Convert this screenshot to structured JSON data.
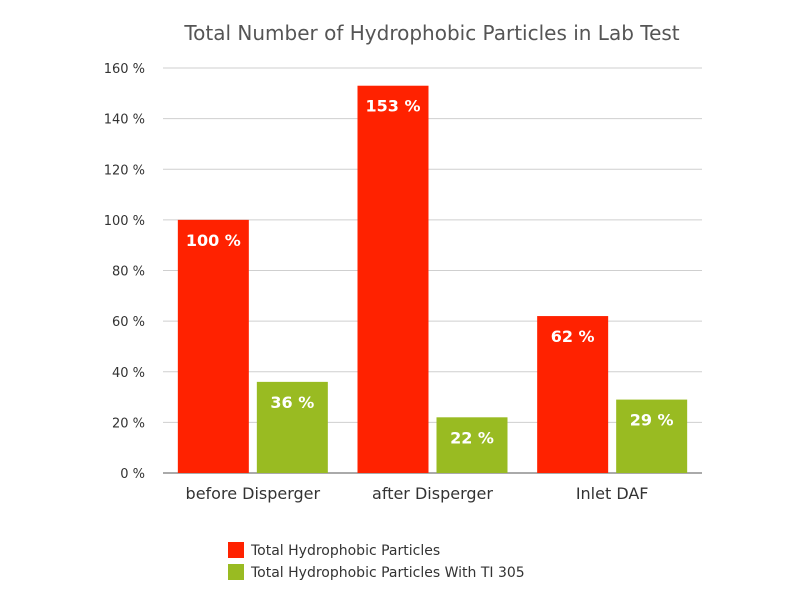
{
  "chart_data": {
    "type": "bar",
    "title": "Total Number of Hydrophobic Particles in Lab Test",
    "xlabel": "",
    "ylabel": "",
    "categories": [
      "before Disperger",
      "after Disperger",
      "Inlet DAF"
    ],
    "series": [
      {
        "name": "Total Hydrophobic Particles",
        "color": "#ff2200",
        "values": [
          100,
          153,
          62
        ],
        "labels": [
          "100 %",
          "153 %",
          "62 %"
        ]
      },
      {
        "name": "Total Hydrophobic Particles With TI 305",
        "color": "#99bb22",
        "values": [
          36,
          22,
          29
        ],
        "labels": [
          "36 %",
          "22 %",
          "29 %"
        ]
      }
    ],
    "ylim": [
      0,
      160
    ],
    "yticks": [
      0,
      20,
      40,
      60,
      80,
      100,
      120,
      140,
      160
    ],
    "ytick_labels": [
      "0 %",
      "20 %",
      "40 %",
      "60 %",
      "80 %",
      "100 %",
      "120 %",
      "140 %",
      "160 %"
    ],
    "grid": true,
    "legend_position": "bottom"
  }
}
